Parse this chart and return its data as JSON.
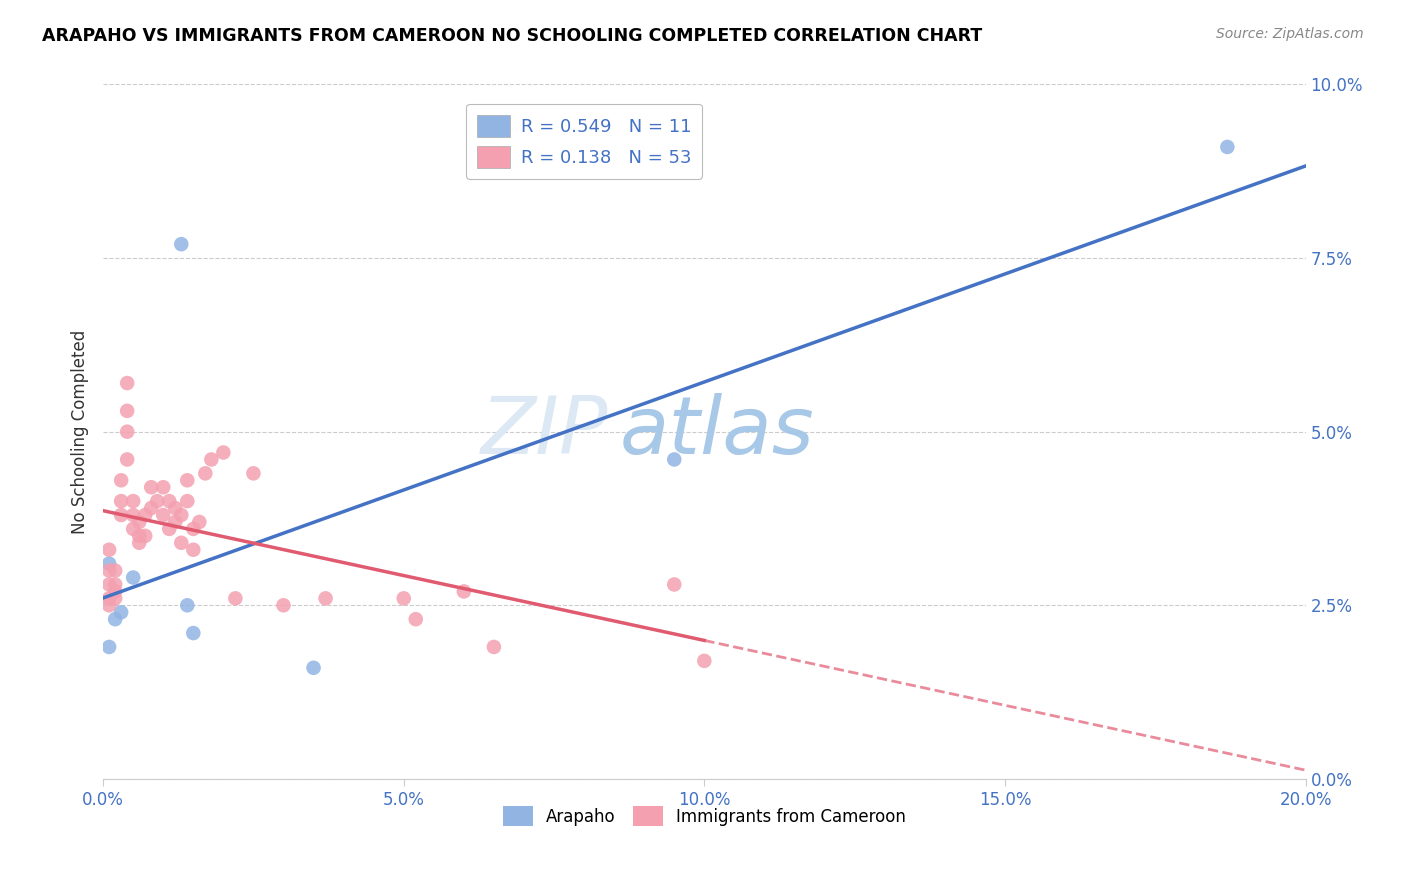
{
  "title": "ARAPAHO VS IMMIGRANTS FROM CAMEROON NO SCHOOLING COMPLETED CORRELATION CHART",
  "source": "Source: ZipAtlas.com",
  "xlabel_arapaho": "Arapaho",
  "xlabel_cameroon": "Immigrants from Cameroon",
  "ylabel": "No Schooling Completed",
  "r_arapaho": 0.549,
  "n_arapaho": 11,
  "r_cameroon": 0.138,
  "n_cameroon": 53,
  "xlim": [
    0.0,
    0.2
  ],
  "ylim": [
    0.0,
    0.1
  ],
  "color_arapaho": "#92b4e3",
  "color_cameroon": "#f4a0b0",
  "color_arapaho_line": "#4472c4",
  "color_cameroon_line": "#e05a70",
  "watermark_zip": "ZIP",
  "watermark_atlas": "atlas",
  "arapaho_x": [
    0.001,
    0.002,
    0.003,
    0.005,
    0.013,
    0.014,
    0.015,
    0.035,
    0.095,
    0.187,
    0.001
  ],
  "arapaho_y": [
    0.031,
    0.023,
    0.024,
    0.029,
    0.077,
    0.025,
    0.021,
    0.016,
    0.046,
    0.091,
    0.019
  ],
  "cameroon_x": [
    0.001,
    0.001,
    0.001,
    0.001,
    0.001,
    0.002,
    0.002,
    0.002,
    0.002,
    0.003,
    0.003,
    0.003,
    0.004,
    0.004,
    0.004,
    0.004,
    0.005,
    0.005,
    0.005,
    0.006,
    0.006,
    0.006,
    0.007,
    0.007,
    0.008,
    0.008,
    0.009,
    0.01,
    0.01,
    0.011,
    0.011,
    0.012,
    0.012,
    0.013,
    0.013,
    0.014,
    0.014,
    0.015,
    0.015,
    0.016,
    0.017,
    0.018,
    0.02,
    0.022,
    0.025,
    0.03,
    0.037,
    0.05,
    0.052,
    0.06,
    0.065,
    0.095,
    0.1
  ],
  "cameroon_y": [
    0.033,
    0.03,
    0.028,
    0.026,
    0.025,
    0.03,
    0.028,
    0.027,
    0.026,
    0.043,
    0.04,
    0.038,
    0.057,
    0.053,
    0.05,
    0.046,
    0.04,
    0.038,
    0.036,
    0.037,
    0.035,
    0.034,
    0.038,
    0.035,
    0.042,
    0.039,
    0.04,
    0.042,
    0.038,
    0.04,
    0.036,
    0.039,
    0.037,
    0.038,
    0.034,
    0.043,
    0.04,
    0.036,
    0.033,
    0.037,
    0.044,
    0.046,
    0.047,
    0.026,
    0.044,
    0.025,
    0.026,
    0.026,
    0.023,
    0.027,
    0.019,
    0.028,
    0.017
  ]
}
